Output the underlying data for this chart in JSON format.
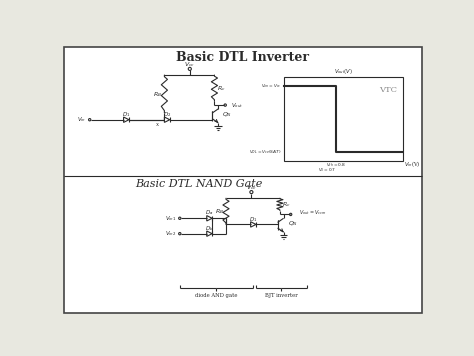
{
  "title_top": "Basic DTL Inverter",
  "title_bottom": "Basic DTL NAND Gate",
  "bg_color": "#ffffff",
  "line_color": "#2a2a2a",
  "vtc_label": "VTC",
  "vtc_color": "#888888",
  "fig_bg": "#e8e8e0",
  "border_color": "#333333"
}
